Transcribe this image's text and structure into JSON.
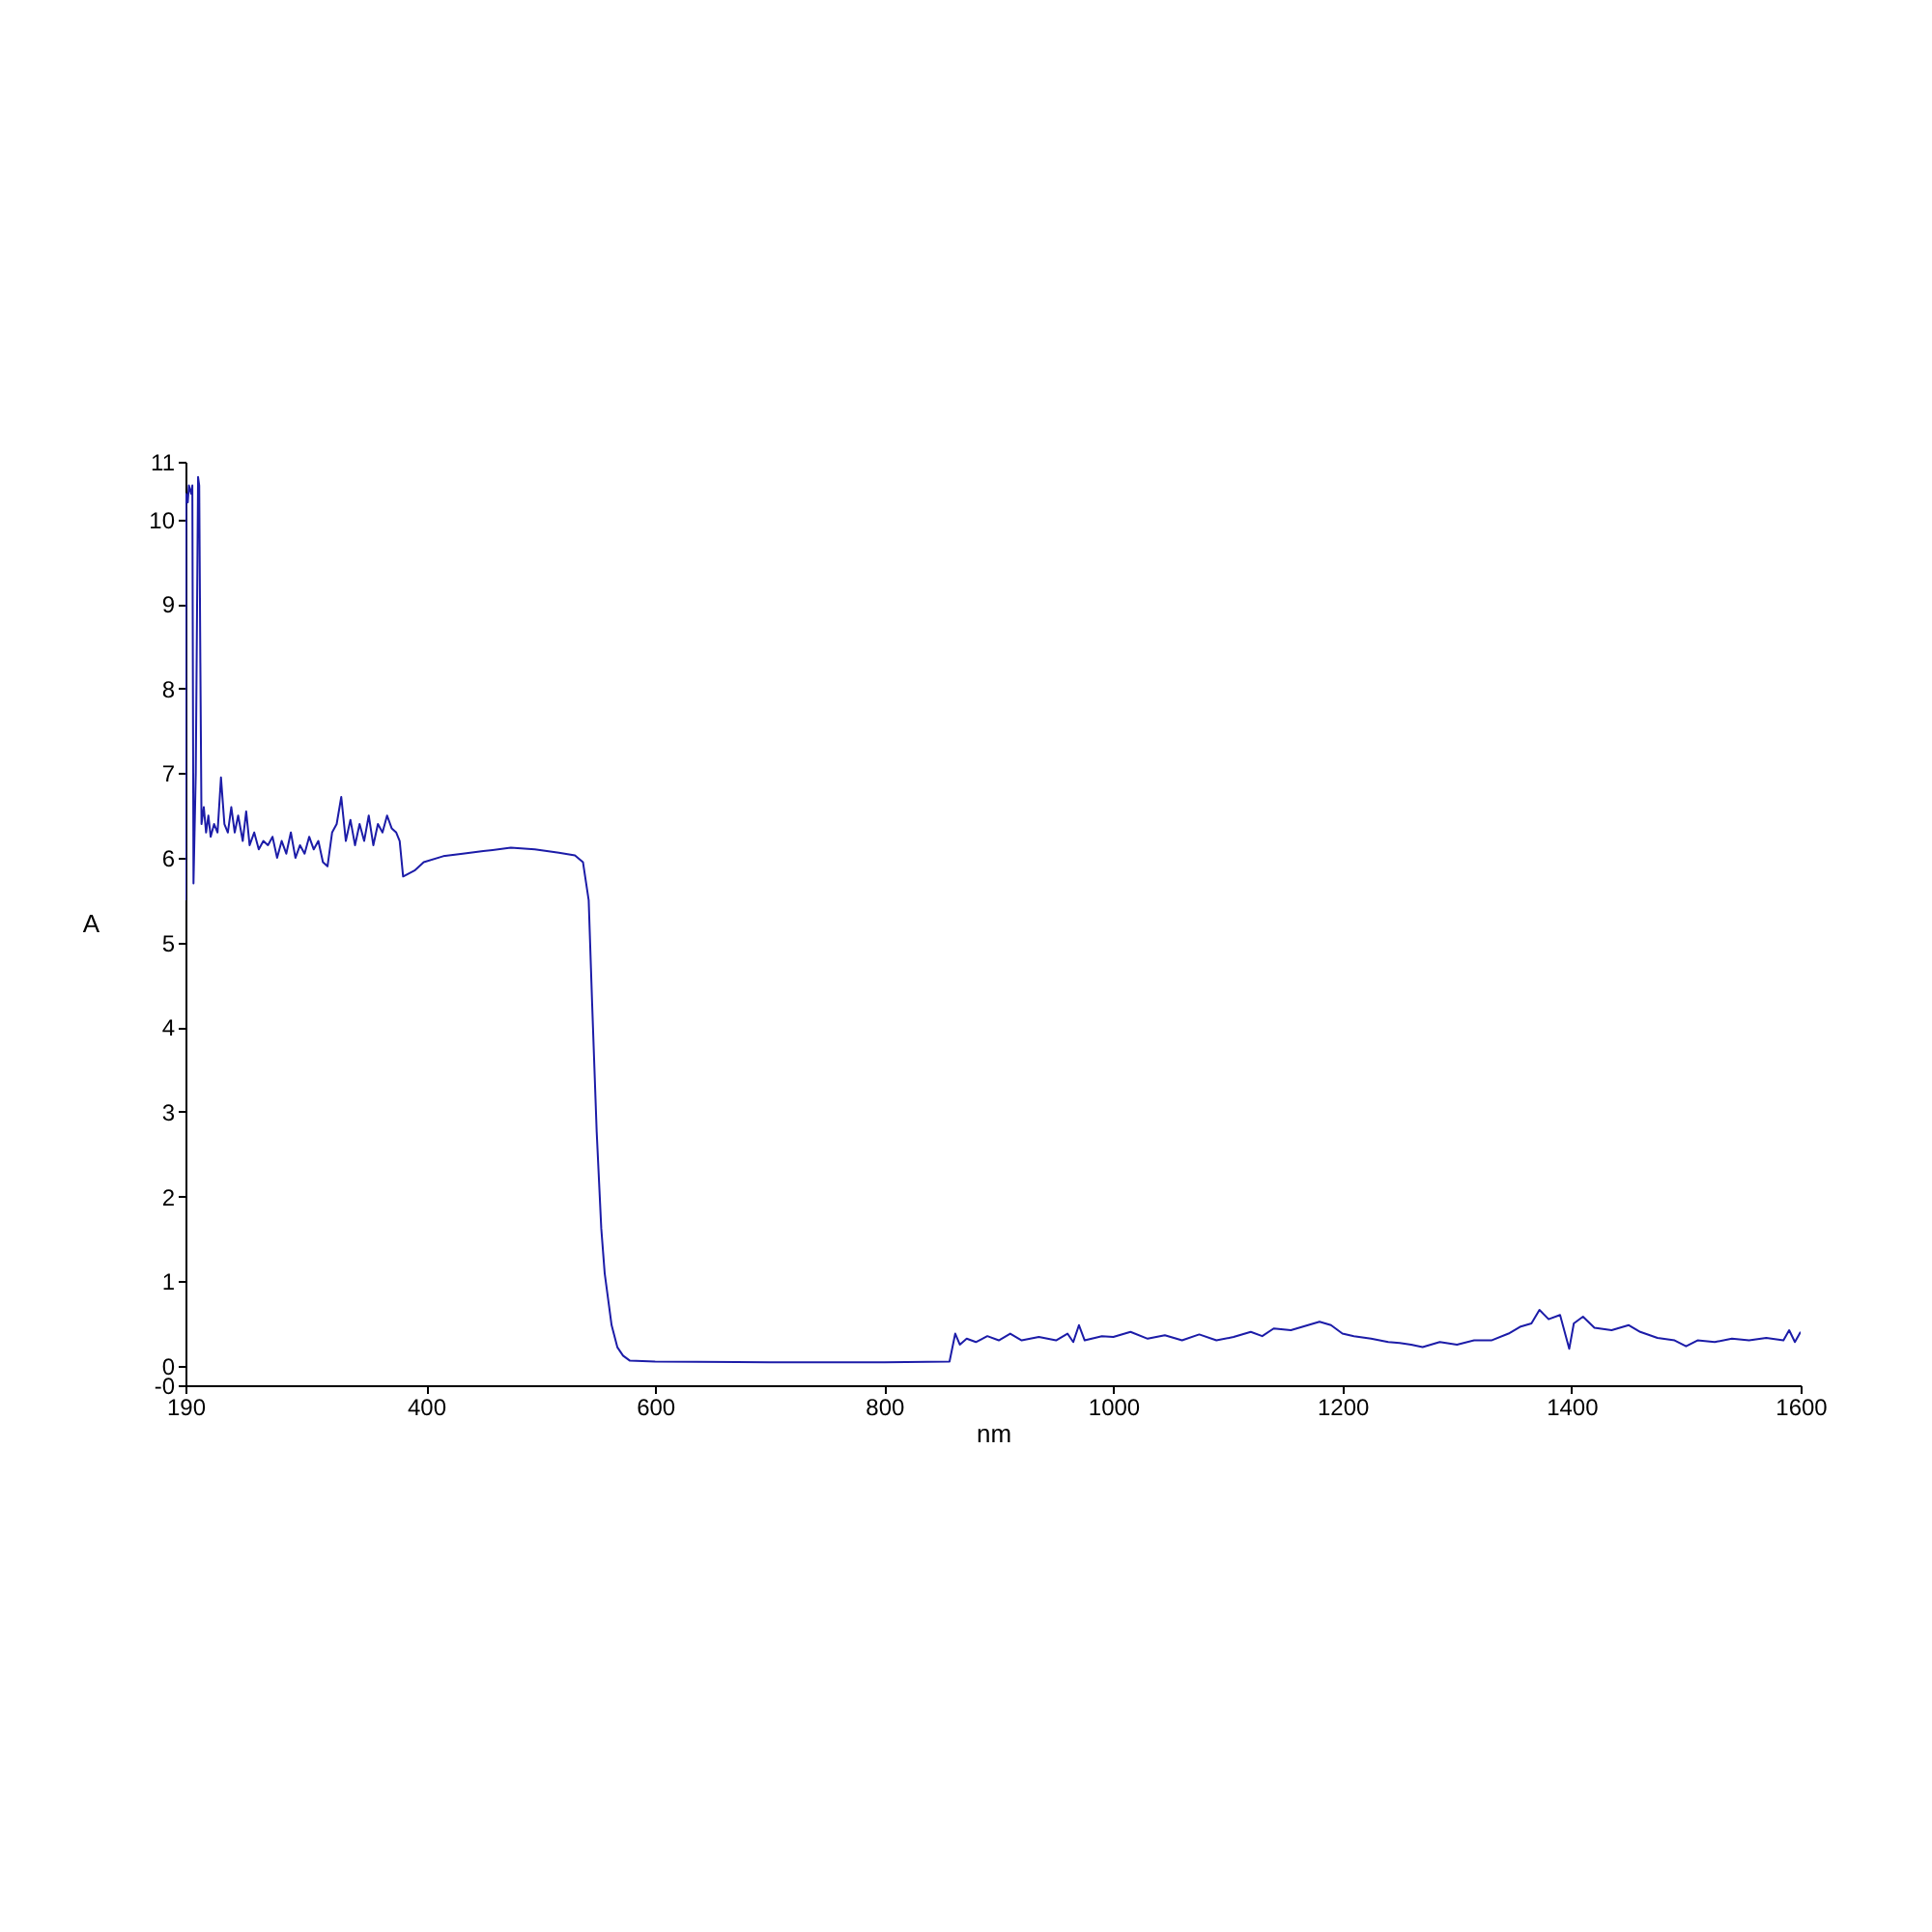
{
  "chart_data": {
    "type": "line",
    "xlabel": "nm",
    "ylabel": "A",
    "xlim": [
      190,
      1600
    ],
    "xticks": [
      190,
      400,
      600,
      800,
      1000,
      1200,
      1400,
      1600
    ],
    "ylim": [
      -0.23,
      10.68
    ],
    "yticks": [
      {
        "value": -0.23,
        "label": "-0"
      },
      0,
      1,
      2,
      3,
      4,
      5,
      6,
      7,
      8,
      9,
      10,
      {
        "value": 10.68,
        "label": "11"
      }
    ],
    "marker": "none",
    "line_style": "solid",
    "x": [
      190,
      190.5,
      192,
      193,
      195,
      196,
      197,
      199,
      201,
      202,
      203,
      204,
      206,
      208,
      210,
      212,
      215,
      218,
      221,
      224,
      227,
      230,
      233,
      236,
      240,
      243,
      246,
      250,
      254,
      258,
      262,
      266,
      270,
      274,
      278,
      282,
      286,
      290,
      294,
      298,
      302,
      306,
      310,
      314,
      318,
      322,
      326,
      330,
      334,
      338,
      342,
      346,
      350,
      354,
      358,
      362,
      366,
      370,
      374,
      377,
      380,
      390,
      398,
      415,
      432,
      450,
      474,
      495,
      516,
      530,
      537,
      542,
      545,
      549,
      553,
      556,
      562,
      567,
      572,
      578,
      600,
      700,
      800,
      857,
      862,
      866,
      872,
      880,
      890,
      900,
      910,
      920,
      935,
      950,
      960,
      965,
      970,
      975,
      990,
      1000,
      1015,
      1030,
      1045,
      1060,
      1075,
      1090,
      1105,
      1120,
      1130,
      1140,
      1155,
      1170,
      1180,
      1190,
      1200,
      1210,
      1225,
      1240,
      1250,
      1260,
      1270,
      1285,
      1300,
      1315,
      1330,
      1345,
      1355,
      1365,
      1372,
      1380,
      1390,
      1398,
      1402,
      1410,
      1420,
      1435,
      1450,
      1460,
      1475,
      1490,
      1500,
      1510,
      1525,
      1540,
      1555,
      1570,
      1585,
      1590,
      1595,
      1600
    ],
    "series": [
      {
        "color": "#1c1ca8",
        "values": [
          5.5,
          10.3,
          10.2,
          10.4,
          10.3,
          10.4,
          5.7,
          7.0,
          10.5,
          10.4,
          8.3,
          6.4,
          6.6,
          6.3,
          6.5,
          6.25,
          6.4,
          6.3,
          6.95,
          6.4,
          6.3,
          6.6,
          6.3,
          6.5,
          6.2,
          6.55,
          6.15,
          6.3,
          6.1,
          6.2,
          6.15,
          6.25,
          6.0,
          6.2,
          6.05,
          6.3,
          6.0,
          6.15,
          6.05,
          6.25,
          6.1,
          6.2,
          5.95,
          5.9,
          6.3,
          6.4,
          6.72,
          6.2,
          6.45,
          6.15,
          6.4,
          6.2,
          6.5,
          6.15,
          6.4,
          6.3,
          6.5,
          6.35,
          6.3,
          6.2,
          5.78,
          5.85,
          5.95,
          6.02,
          6.05,
          6.08,
          6.12,
          6.1,
          6.06,
          6.03,
          5.95,
          5.5,
          4.28,
          2.76,
          1.62,
          1.09,
          0.48,
          0.22,
          0.12,
          0.06,
          0.05,
          0.04,
          0.04,
          0.05,
          0.38,
          0.25,
          0.32,
          0.28,
          0.35,
          0.3,
          0.38,
          0.3,
          0.34,
          0.3,
          0.38,
          0.28,
          0.48,
          0.3,
          0.35,
          0.34,
          0.4,
          0.32,
          0.36,
          0.3,
          0.37,
          0.3,
          0.34,
          0.4,
          0.35,
          0.44,
          0.42,
          0.48,
          0.52,
          0.48,
          0.38,
          0.35,
          0.32,
          0.28,
          0.27,
          0.25,
          0.22,
          0.28,
          0.25,
          0.3,
          0.3,
          0.38,
          0.46,
          0.5,
          0.66,
          0.55,
          0.6,
          0.2,
          0.5,
          0.58,
          0.45,
          0.42,
          0.48,
          0.4,
          0.33,
          0.3,
          0.23,
          0.3,
          0.28,
          0.32,
          0.3,
          0.33,
          0.3,
          0.42,
          0.28,
          0.4
        ]
      }
    ]
  }
}
